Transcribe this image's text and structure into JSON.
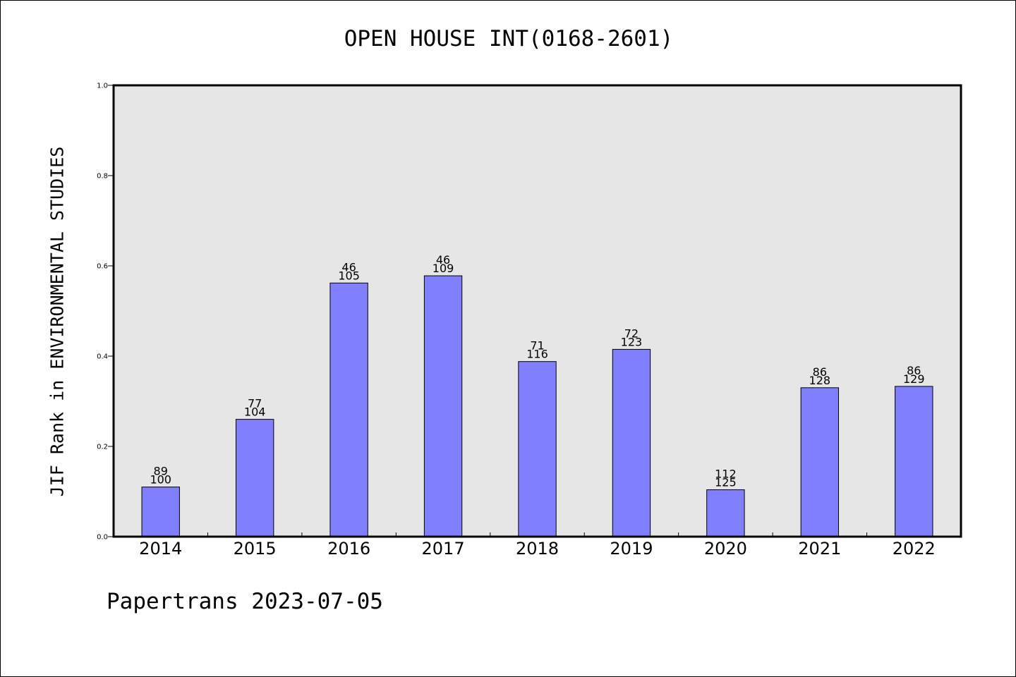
{
  "chart_data": {
    "type": "bar",
    "title": "OPEN HOUSE INT(0168-2601)",
    "xlabel": "",
    "ylabel": "JIF Rank in ENVIRONMENTAL STUDIES",
    "ylim": [
      0,
      1.0
    ],
    "yticks": [
      "0.0",
      "0.2",
      "0.4",
      "0.6",
      "0.8",
      "1.0"
    ],
    "categories": [
      "2014",
      "2015",
      "2016",
      "2017",
      "2018",
      "2019",
      "2020",
      "2021",
      "2022"
    ],
    "values": [
      0.11,
      0.26,
      0.562,
      0.578,
      0.388,
      0.415,
      0.104,
      0.33,
      0.333
    ],
    "rank": [
      "89",
      "77",
      "46",
      "46",
      "71",
      "72",
      "112",
      "86",
      "86"
    ],
    "total": [
      "100",
      "104",
      "105",
      "109",
      "116",
      "123",
      "125",
      "128",
      "129"
    ],
    "grid": false,
    "colors": {
      "bar": "#8080ff",
      "plot_bg": "#e6e6e6",
      "edge": "#000000"
    }
  },
  "footer": {
    "credit": "Papertrans 2023-07-05"
  }
}
